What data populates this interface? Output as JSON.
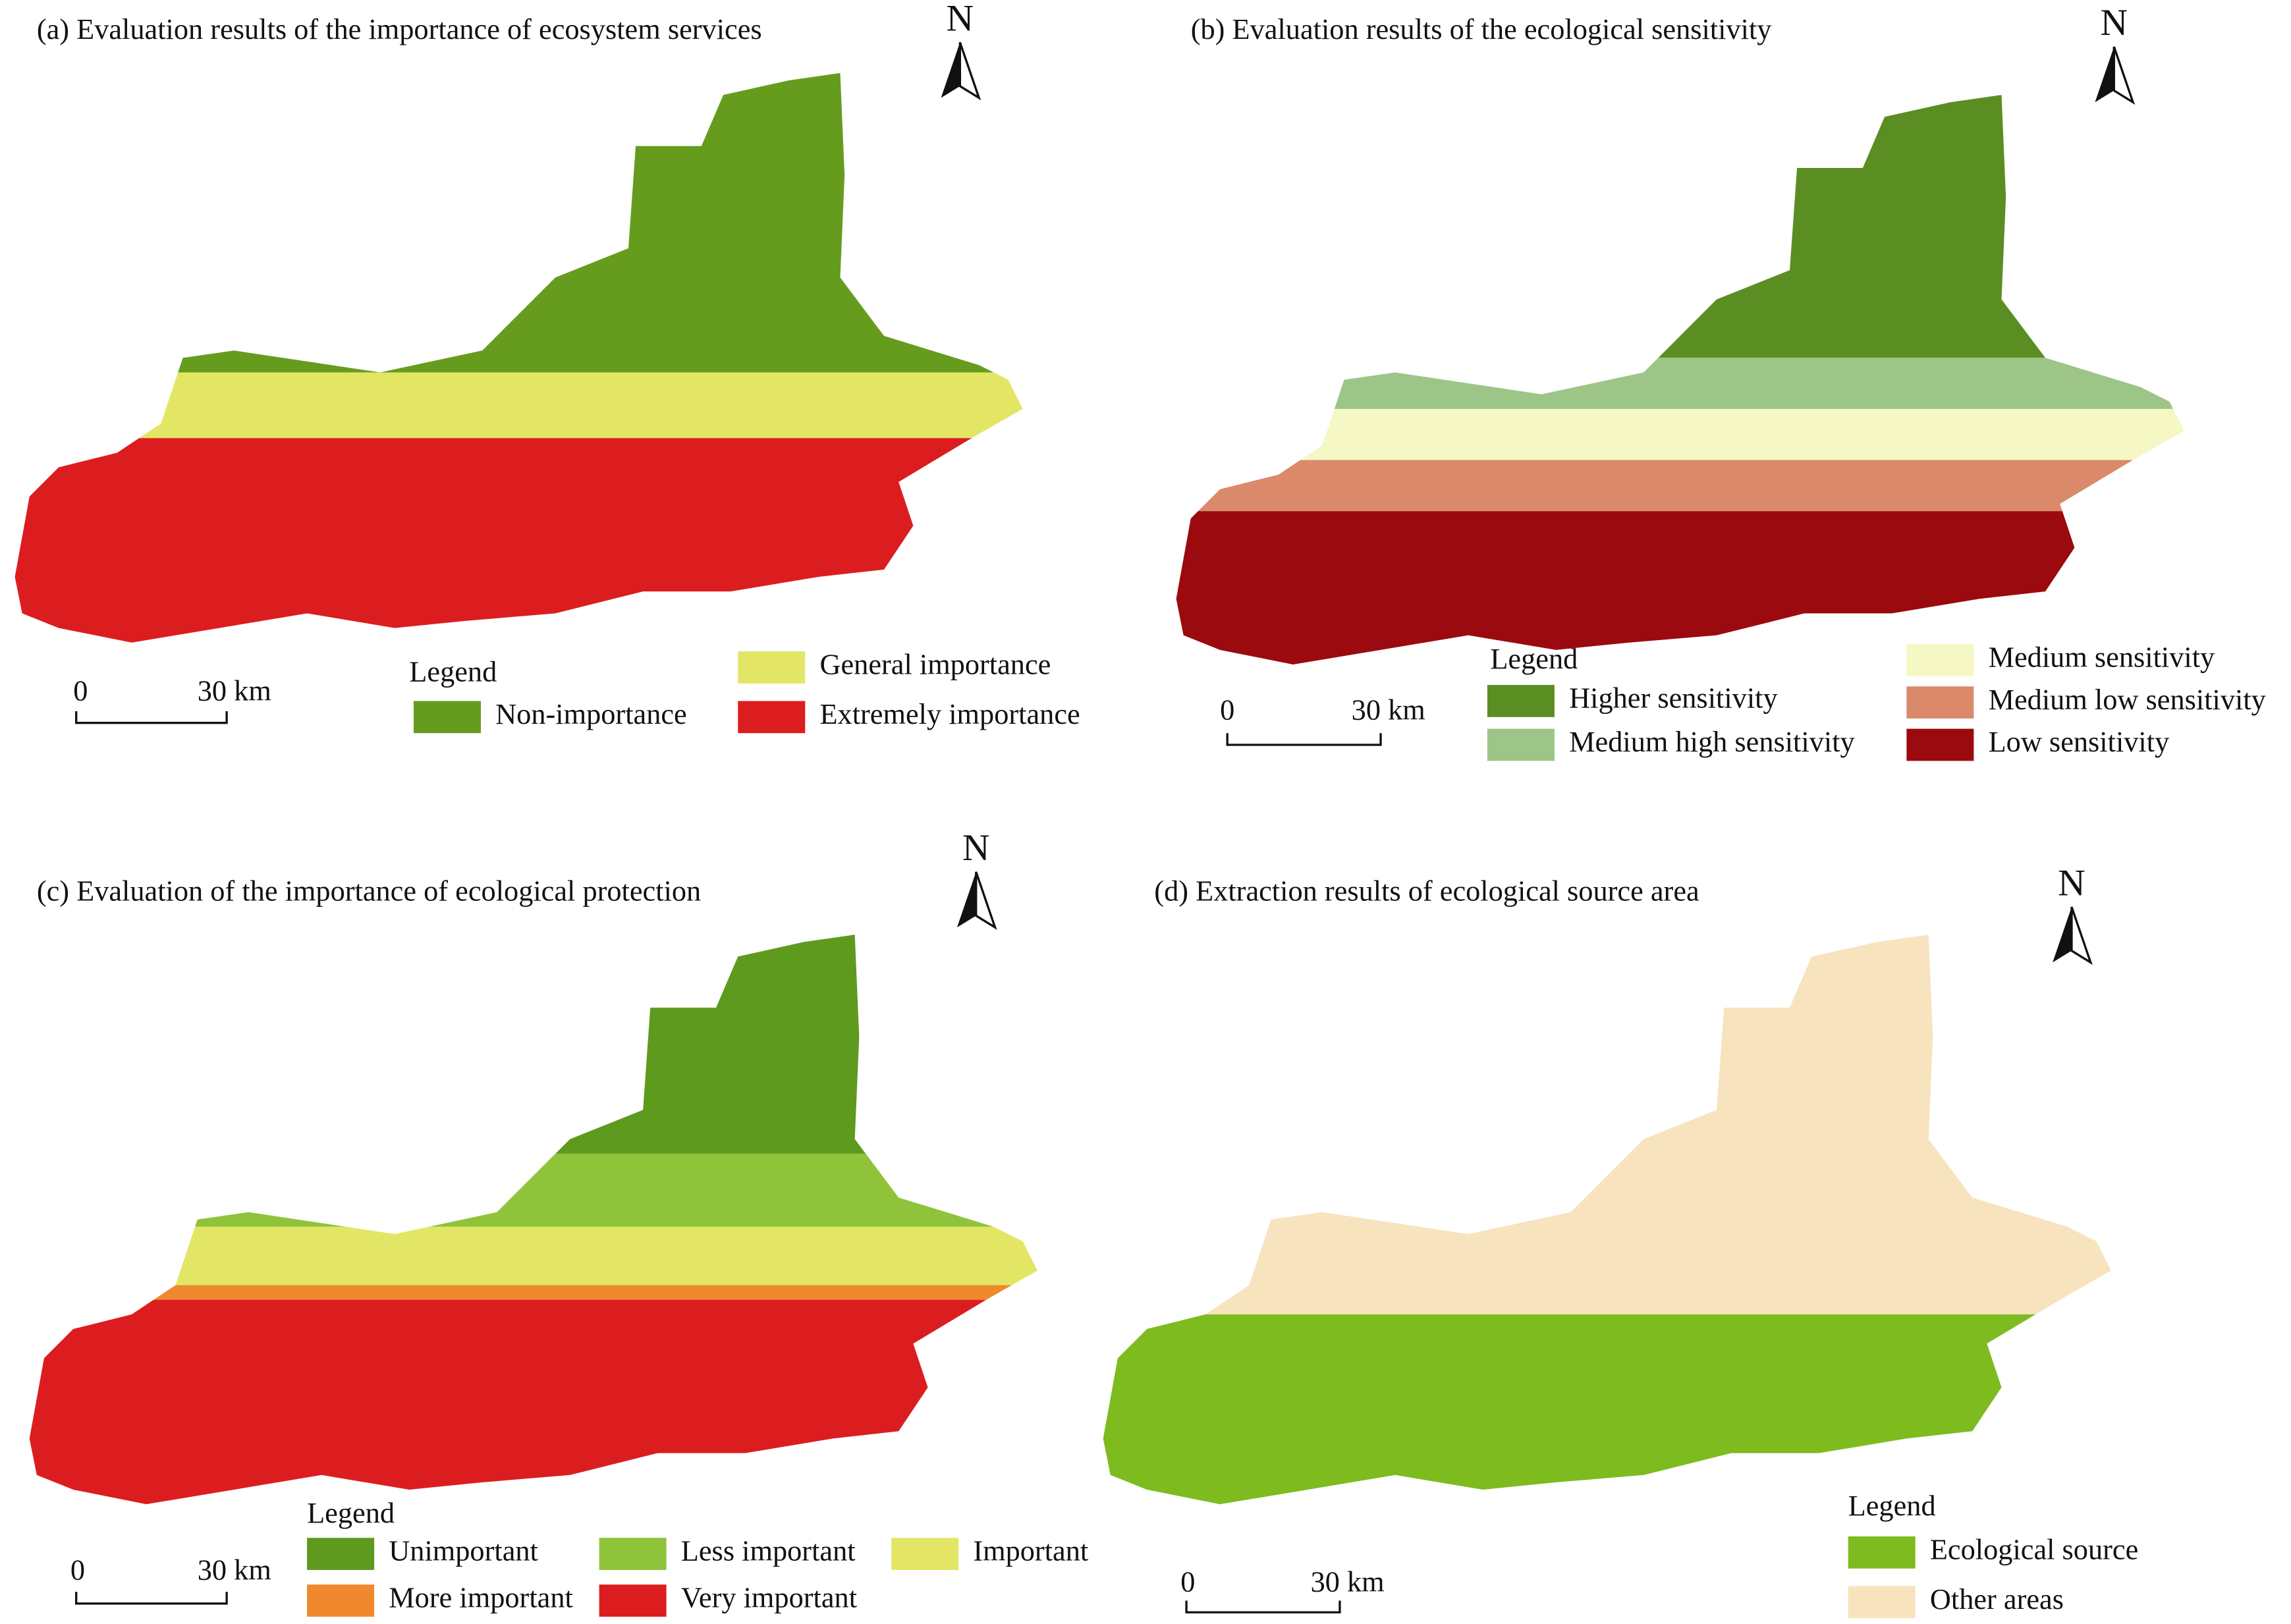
{
  "panels": [
    {
      "title": "(a) Evaluation results of the importance of ecosystem services",
      "north": "N",
      "scale": {
        "zero": "0",
        "distance": "30 km"
      },
      "legend": {
        "title": "Legend",
        "items": [
          {
            "label": "Non-importance",
            "color": "#669c1e"
          },
          {
            "label": "General importance",
            "color": "#e3e665"
          },
          {
            "label": "Extremely importance",
            "color": "#dc1d1f"
          }
        ]
      }
    },
    {
      "title": "(b) Evaluation results of the ecological sensitivity",
      "north": "N",
      "scale": {
        "zero": "0",
        "distance": "30 km"
      },
      "legend": {
        "title": "Legend",
        "items": [
          {
            "label": "Higher sensitivity",
            "color": "#5b8e22"
          },
          {
            "label": "Medium high sensitivity",
            "color": "#9cc587"
          },
          {
            "label": "Medium sensitivity",
            "color": "#f5f7c4"
          },
          {
            "label": "Medium low sensitivity",
            "color": "#da8a6a"
          },
          {
            "label": "Low sensitivity",
            "color": "#9b0a0e"
          }
        ]
      }
    },
    {
      "title": "(c) Evaluation of the importance of ecological protection",
      "north": "N",
      "scale": {
        "zero": "0",
        "distance": "30 km"
      },
      "legend": {
        "title": "Legend",
        "items": [
          {
            "label": "Unimportant",
            "color": "#5e9a1e"
          },
          {
            "label": "Less important",
            "color": "#8fc33a"
          },
          {
            "label": "Important",
            "color": "#e3e665"
          },
          {
            "label": "More important",
            "color": "#f0882e"
          },
          {
            "label": "Very important",
            "color": "#dc1d1f"
          }
        ]
      }
    },
    {
      "title": "(d) Extraction results of ecological source area",
      "north": "N",
      "scale": {
        "zero": "0",
        "distance": "30 km"
      },
      "legend": {
        "title": "Legend",
        "items": [
          {
            "label": "Ecological source",
            "color": "#7dbb1f"
          },
          {
            "label": "Other areas",
            "color": "#f7e3be"
          }
        ]
      }
    }
  ]
}
